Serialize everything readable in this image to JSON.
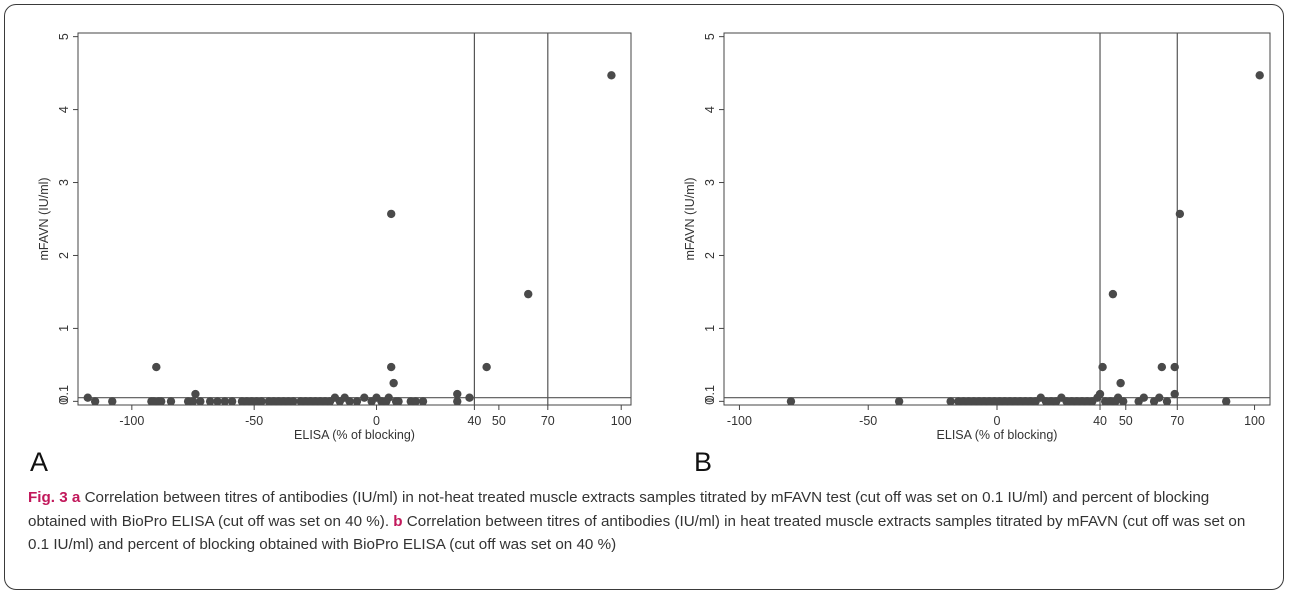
{
  "chart_data": [
    {
      "type": "scatter",
      "panel_label": "A",
      "xlabel": "ELISA (% of blocking)",
      "ylabel": "mFAVN (IU/ml)",
      "xlim": [
        -122,
        104
      ],
      "ylim": [
        -0.05,
        5.05
      ],
      "xticks": [
        -100,
        -50,
        0,
        40,
        50,
        70,
        100
      ],
      "yticks": [
        0,
        1,
        2,
        3,
        4,
        5
      ],
      "ytick_labels": [
        "0",
        "1",
        "2",
        "3",
        "4",
        "5"
      ],
      "extra_y_label": {
        "value": 0.05,
        "text": "0.1"
      },
      "cutoff_lines": {
        "vertical": [
          40,
          70
        ],
        "horizontal": 0.05
      },
      "points": [
        [
          -118,
          0.05
        ],
        [
          -115,
          0.0
        ],
        [
          -108,
          0.0
        ],
        [
          -92,
          0.0
        ],
        [
          -91,
          0.0
        ],
        [
          -90,
          0.47
        ],
        [
          -89,
          0.0
        ],
        [
          -88,
          0.0
        ],
        [
          -84,
          0.0
        ],
        [
          -77,
          0.0
        ],
        [
          -75,
          0.0
        ],
        [
          -74,
          0.1
        ],
        [
          -72,
          0.0
        ],
        [
          -68,
          0.0
        ],
        [
          -65,
          0.0
        ],
        [
          -62,
          0.0
        ],
        [
          -59,
          0.0
        ],
        [
          -55,
          0.0
        ],
        [
          -53,
          0.0
        ],
        [
          -51,
          0.0
        ],
        [
          -49,
          0.0
        ],
        [
          -47,
          0.0
        ],
        [
          -44,
          0.0
        ],
        [
          -42,
          0.0
        ],
        [
          -40,
          0.0
        ],
        [
          -38,
          0.0
        ],
        [
          -36,
          0.0
        ],
        [
          -34,
          0.0
        ],
        [
          -31,
          0.0
        ],
        [
          -29,
          0.0
        ],
        [
          -27,
          0.0
        ],
        [
          -25,
          0.0
        ],
        [
          -23,
          0.0
        ],
        [
          -21,
          0.0
        ],
        [
          -19,
          0.0
        ],
        [
          -17,
          0.05
        ],
        [
          -15,
          0.0
        ],
        [
          -13,
          0.05
        ],
        [
          -11,
          0.0
        ],
        [
          -8,
          0.0
        ],
        [
          -5,
          0.05
        ],
        [
          -2,
          0.0
        ],
        [
          0,
          0.05
        ],
        [
          2,
          0.0
        ],
        [
          4,
          0.0
        ],
        [
          6,
          2.57
        ],
        [
          6,
          0.47
        ],
        [
          7,
          0.25
        ],
        [
          5,
          0.05
        ],
        [
          8,
          0.0
        ],
        [
          9,
          0.0
        ],
        [
          14,
          0.0
        ],
        [
          16,
          0.0
        ],
        [
          19,
          0.0
        ],
        [
          33,
          0.1
        ],
        [
          33,
          0.0
        ],
        [
          38,
          0.05
        ],
        [
          45,
          0.47
        ],
        [
          62,
          1.47
        ],
        [
          96,
          4.47
        ]
      ]
    },
    {
      "type": "scatter",
      "panel_label": "B",
      "xlabel": "ELISA (% of blocking)",
      "ylabel": "mFAVN (IU/ml)",
      "xlim": [
        -106,
        106
      ],
      "ylim": [
        -0.05,
        5.05
      ],
      "xticks": [
        -100,
        -50,
        0,
        40,
        50,
        70,
        100
      ],
      "yticks": [
        0,
        1,
        2,
        3,
        4,
        5
      ],
      "ytick_labels": [
        "0",
        "1",
        "2",
        "3",
        "4",
        "5"
      ],
      "extra_y_label": {
        "value": 0.05,
        "text": "0.1"
      },
      "cutoff_lines": {
        "vertical": [
          40,
          70
        ],
        "horizontal": 0.05
      },
      "points": [
        [
          -80,
          0.0
        ],
        [
          -38,
          0.0
        ],
        [
          -18,
          0.0
        ],
        [
          -15,
          0.0
        ],
        [
          -13,
          0.0
        ],
        [
          -11,
          0.0
        ],
        [
          -9,
          0.0
        ],
        [
          -7,
          0.0
        ],
        [
          -5,
          0.0
        ],
        [
          -3,
          0.0
        ],
        [
          -1,
          0.0
        ],
        [
          1,
          0.0
        ],
        [
          3,
          0.0
        ],
        [
          5,
          0.0
        ],
        [
          7,
          0.0
        ],
        [
          9,
          0.0
        ],
        [
          11,
          0.0
        ],
        [
          13,
          0.0
        ],
        [
          15,
          0.0
        ],
        [
          17,
          0.05
        ],
        [
          19,
          0.0
        ],
        [
          21,
          0.0
        ],
        [
          23,
          0.0
        ],
        [
          25,
          0.05
        ],
        [
          27,
          0.0
        ],
        [
          29,
          0.0
        ],
        [
          31,
          0.0
        ],
        [
          33,
          0.0
        ],
        [
          35,
          0.0
        ],
        [
          37,
          0.0
        ],
        [
          39,
          0.05
        ],
        [
          40,
          0.1
        ],
        [
          41,
          0.47
        ],
        [
          42,
          0.0
        ],
        [
          44,
          0.0
        ],
        [
          45,
          1.47
        ],
        [
          46,
          0.0
        ],
        [
          47,
          0.05
        ],
        [
          48,
          0.25
        ],
        [
          49,
          0.0
        ],
        [
          55,
          0.0
        ],
        [
          57,
          0.05
        ],
        [
          61,
          0.0
        ],
        [
          63,
          0.05
        ],
        [
          64,
          0.47
        ],
        [
          66,
          0.0
        ],
        [
          69,
          0.47
        ],
        [
          69,
          0.1
        ],
        [
          71,
          2.57
        ],
        [
          89,
          0.0
        ],
        [
          102,
          4.47
        ]
      ]
    }
  ],
  "caption": {
    "label": "Fig. 3",
    "a_letter": "a",
    "a_text": "Correlation between titres of antibodies (IU/ml) in not-heat treated muscle extracts samples titrated by mFAVN test (cut off was set on 0.1 IU/ml) and percent of blocking obtained with BioPro ELISA (cut off was set on 40 %).",
    "b_letter": "b",
    "b_text": "Correlation between titres of antibodies (IU/ml) in heat treated muscle extracts samples titrated by mFAVN (cut off was set on 0.1 IU/ml) and percent of blocking obtained with BioPro ELISA (cut off was set on 40 %)"
  }
}
